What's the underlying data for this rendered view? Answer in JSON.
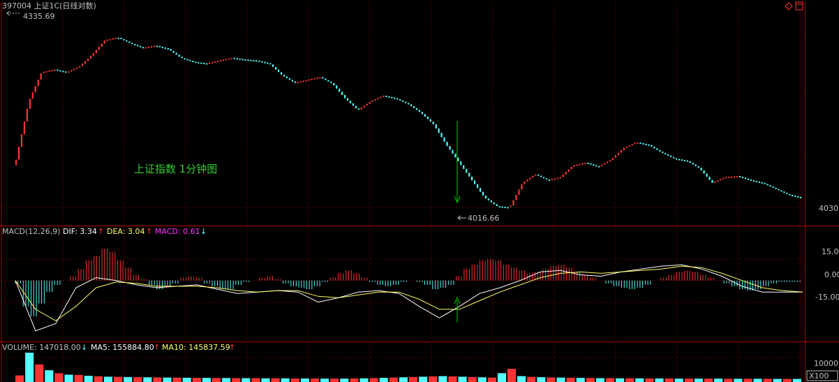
{
  "header": {
    "title": "397004 上证1C(日线对数)",
    "high_marker": "4335.69",
    "low_marker": "4016.66"
  },
  "annotation": {
    "text": "上证指数 1分钟图",
    "color": "#33cc33"
  },
  "colors": {
    "up": "#ff3333",
    "down": "#54ffff",
    "dif": "#ffffff",
    "dea": "#ffff66",
    "macd": "#ff33ff",
    "grid": "#8b0000",
    "frame": "#b00000",
    "arrow": "#00cc00"
  },
  "macd_header": {
    "name": "MACD(12,26,9)",
    "dif_label": "DIF: 3.34",
    "dif_arrow": "↑",
    "dea_label": "DEA: 3.04",
    "dea_arrow": "↑",
    "macd_label": "MACD: 0.61",
    "macd_arrow": "↓"
  },
  "volume_header": {
    "volume_label": "VOLUME: 147018.00",
    "volume_arrow": "↓",
    "ma5_label": "MA5: 155884.80",
    "ma5_arrow": "↑",
    "ma10_label": "MA10: 145837.59",
    "ma10_arrow": "↑"
  },
  "axis": {
    "price_tick": "4030",
    "macd_ticks": [
      "15.00",
      "0.00",
      "-15.00"
    ],
    "volume_tick": "10000",
    "volume_unit": "X100"
  },
  "chart_data": {
    "type": "line",
    "series": [
      {
        "values": [
          4100,
          4200,
          4250,
          4255,
          4250,
          4260,
          4280,
          4305,
          4310,
          4300,
          4292,
          4296,
          4290,
          4275,
          4268,
          4265,
          4270,
          4275,
          4272,
          4270,
          4265,
          4245,
          4232,
          4237,
          4242,
          4230,
          4205,
          4185,
          4200,
          4210,
          4205,
          4195,
          4180,
          4160,
          4125,
          4095,
          4065,
          4035,
          4020,
          4018,
          4060,
          4075,
          4065,
          4070,
          4090,
          4095,
          4088,
          4100,
          4120,
          4130,
          4125,
          4112,
          4102,
          4098,
          4085,
          4060,
          4070,
          4072,
          4065,
          4060,
          4050,
          4040,
          4035
        ]
      }
    ],
    "ylim": [
      4000,
      4350
    ],
    "reference_levels": {
      "high": 4335.69,
      "low": 4016.66,
      "tick": 4030
    },
    "macd": {
      "ylim": [
        -40,
        30
      ],
      "dif": [
        0,
        -35,
        -30,
        -5,
        2,
        0,
        -3,
        -5,
        -4,
        -3,
        -6,
        -9,
        -8,
        -7,
        -8,
        -15,
        -12,
        -8,
        -7,
        -9,
        -18,
        -26,
        -18,
        -9,
        -5,
        0,
        6,
        7,
        4,
        3,
        6,
        8,
        10,
        11,
        8,
        3,
        -4,
        -8,
        -8,
        -8
      ],
      "dea": [
        0,
        -20,
        -28,
        -18,
        -5,
        -1,
        -2,
        -4,
        -4,
        -4,
        -5,
        -7,
        -8,
        -7,
        -7,
        -11,
        -12,
        -10,
        -8,
        -8,
        -13,
        -20,
        -20,
        -14,
        -8,
        -3,
        2,
        5,
        6,
        5,
        6,
        7,
        8,
        10,
        9,
        5,
        0,
        -5,
        -7,
        -8
      ],
      "hist": [
        -2,
        -18,
        -25,
        -16,
        -8,
        -3,
        0,
        3,
        8,
        14,
        17,
        22,
        20,
        14,
        9,
        4,
        1,
        -3,
        -6,
        -4,
        -2,
        2,
        3,
        2,
        -2,
        -4,
        -6,
        -6,
        -3,
        -1,
        0,
        2,
        3,
        1,
        -2,
        -4,
        -5,
        -6,
        -4,
        -1,
        2,
        5,
        7,
        5,
        2,
        -1,
        -3,
        -4,
        -3,
        -1,
        0,
        -1,
        -3,
        -6,
        -5,
        -3,
        3,
        8,
        11,
        14,
        15,
        14,
        11,
        9,
        7,
        5,
        6,
        8,
        10,
        11,
        9,
        6,
        4,
        2,
        0,
        -2,
        -4,
        -5,
        -6,
        -5,
        -3,
        0,
        2,
        4,
        6,
        7,
        6,
        4,
        2,
        0,
        -2,
        -4,
        -6,
        -7,
        -6,
        -4,
        -2,
        -1,
        -1,
        -1
      ]
    },
    "volume": {
      "ylim": [
        0,
        20000
      ],
      "values": [
        4500,
        20000,
        12000,
        8000,
        6000,
        5000,
        4800,
        4200,
        3900,
        3600,
        3500,
        3400,
        3300,
        3200,
        3100,
        3000,
        3000,
        2900,
        2800,
        2800,
        2700,
        2700,
        2600,
        2600,
        2600,
        2500,
        2500,
        2500,
        2400,
        2400,
        2400,
        2300,
        2300,
        2300,
        2400,
        2500,
        2600,
        2800,
        3000,
        3200,
        3400,
        3600,
        3800,
        4000,
        3800,
        3600,
        3400,
        3200,
        3000,
        6000,
        9000,
        4000,
        3500,
        3300,
        3100,
        3000,
        2900,
        2800,
        2700,
        2600,
        2600,
        2500,
        2500,
        2500,
        2400,
        2400,
        2400,
        2300,
        2300,
        2300,
        2300,
        2300,
        2200,
        2200,
        2200,
        2200,
        2200,
        2100,
        2100,
        2100
      ]
    }
  }
}
